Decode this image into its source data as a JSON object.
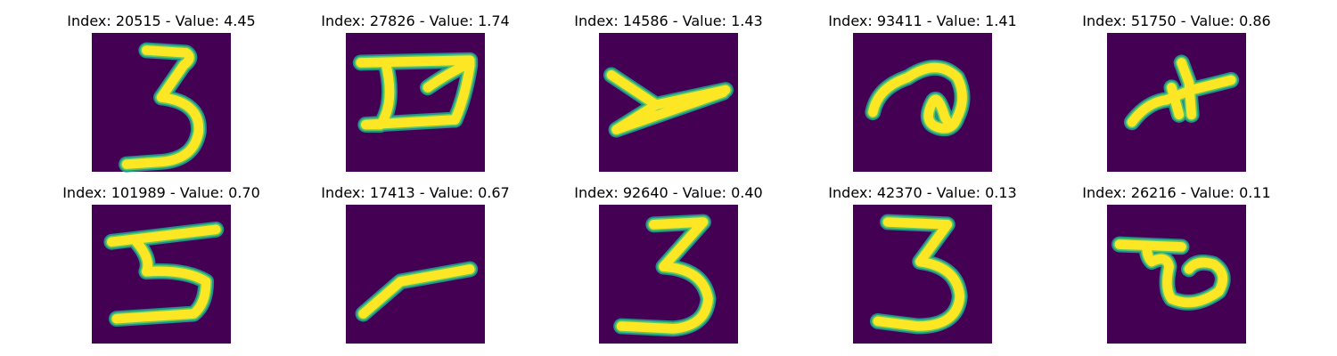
{
  "colors": {
    "background": "#440154",
    "edge": "#21918c",
    "mid": "#5ec962",
    "stroke": "#fde725"
  },
  "panels": [
    {
      "index": "20515",
      "value": "4.45",
      "title": "Index: 20515 - Value: 4.45",
      "icon": "digit-3-glyph"
    },
    {
      "index": "27826",
      "value": "1.74",
      "title": "Index: 27826 - Value: 1.74",
      "icon": "digit-5-glyph"
    },
    {
      "index": "14586",
      "value": "1.43",
      "title": "Index: 14586 - Value: 1.43",
      "icon": "digit-y-glyph"
    },
    {
      "index": "93411",
      "value": "1.41",
      "title": "Index: 93411 - Value: 1.41",
      "icon": "curl-glyph"
    },
    {
      "index": "51750",
      "value": "0.86",
      "title": "Index: 51750 - Value: 0.86",
      "icon": "cross-glyph"
    },
    {
      "index": "101989",
      "value": "0.70",
      "title": "Index: 101989 - Value: 0.70",
      "icon": "digit-5-glyph"
    },
    {
      "index": "17413",
      "value": "0.67",
      "title": "Index: 17413 - Value: 0.67",
      "icon": "digit-y-glyph"
    },
    {
      "index": "92640",
      "value": "0.40",
      "title": "Index: 92640 - Value: 0.40",
      "icon": "digit-3-glyph"
    },
    {
      "index": "42370",
      "value": "0.13",
      "title": "Index: 42370 - Value: 0.13",
      "icon": "digit-3-glyph"
    },
    {
      "index": "26216",
      "value": "0.11",
      "title": "Index: 26216 - Value: 0.11",
      "icon": "loop-glyph"
    }
  ]
}
